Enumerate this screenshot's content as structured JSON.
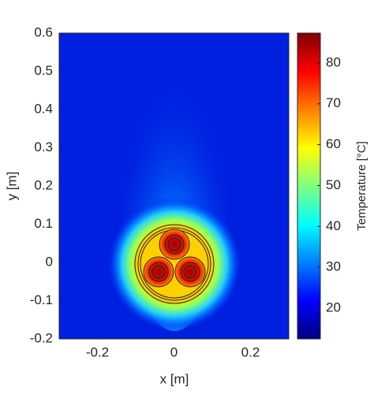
{
  "chart_data": {
    "type": "heatmap",
    "colormap": "jet",
    "xlabel": "x [m]",
    "ylabel": "y [m]",
    "colorbar_label": "Temperature [°C]",
    "xlim": [
      -0.3,
      0.3
    ],
    "xticks": [
      -0.2,
      0,
      0.2
    ],
    "ylim": [
      -0.2,
      0.6
    ],
    "yticks": [
      -0.2,
      -0.1,
      0,
      0.1,
      0.2,
      0.3,
      0.4,
      0.5,
      0.6
    ],
    "clim": [
      12.5,
      87.3
    ],
    "cticks": [
      20,
      30,
      40,
      50,
      60,
      70,
      80
    ]
  }
}
